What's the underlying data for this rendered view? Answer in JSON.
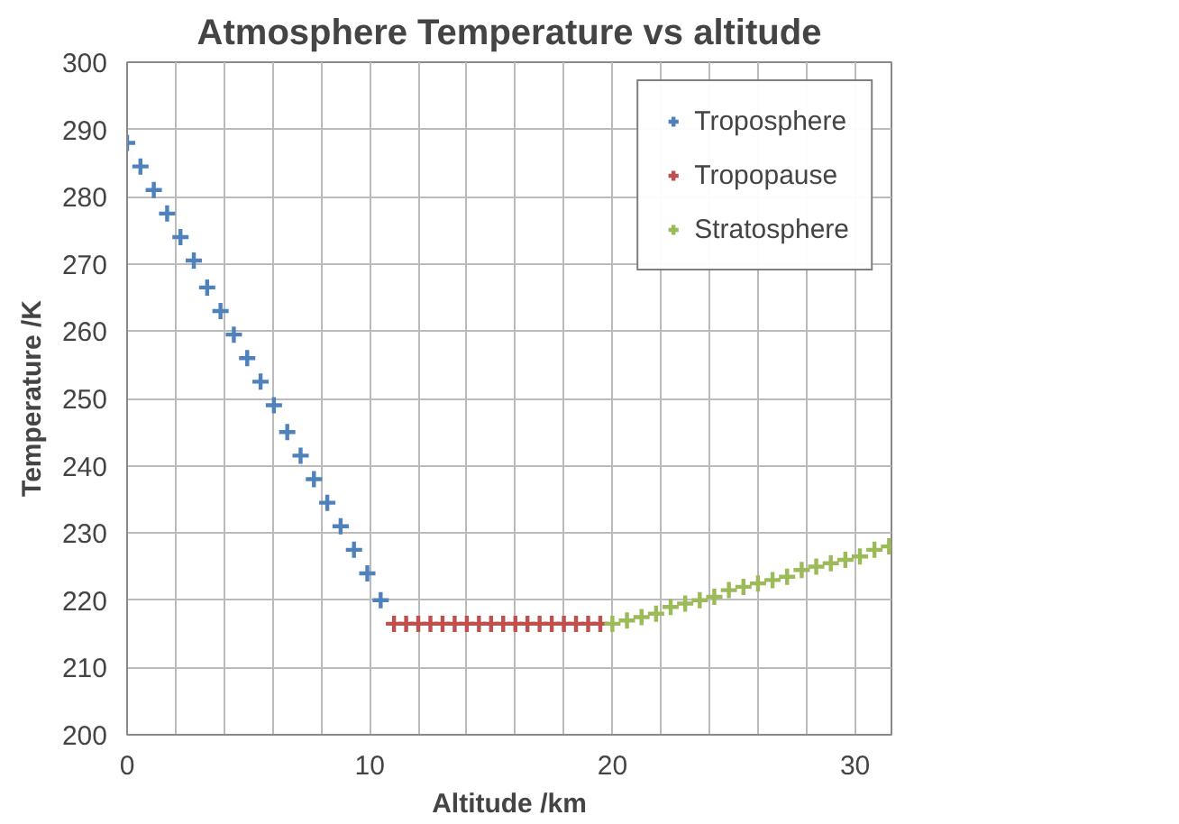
{
  "chart_data": {
    "type": "scatter",
    "title": "Atmosphere Temperature vs altitude",
    "xlabel": "Altitude /km",
    "ylabel": "Temperature /K",
    "xlim": [
      0,
      31.5
    ],
    "ylim": [
      200,
      300
    ],
    "xticks": [
      0,
      {
        "value": 2,
        "label": null
      },
      {
        "value": 4,
        "label": null
      },
      {
        "value": 6,
        "label": null
      },
      {
        "value": 8,
        "label": null
      },
      10,
      {
        "value": 12,
        "label": null
      },
      {
        "value": 14,
        "label": null
      },
      {
        "value": 16,
        "label": null
      },
      {
        "value": 18,
        "label": null
      },
      20,
      {
        "value": 22,
        "label": null
      },
      {
        "value": 24,
        "label": null
      },
      {
        "value": 26,
        "label": null
      },
      {
        "value": 28,
        "label": null
      },
      30
    ],
    "yticks": [
      200,
      210,
      220,
      230,
      240,
      250,
      260,
      270,
      280,
      290,
      300
    ],
    "grid": true,
    "legend": "top right",
    "marker": "cross",
    "series": [
      {
        "name": "Troposphere",
        "color": "#4f81bd",
        "x": [
          0,
          0.55,
          1.1,
          1.65,
          2.2,
          2.75,
          3.3,
          3.85,
          4.4,
          4.95,
          5.5,
          6.05,
          6.6,
          7.15,
          7.7,
          8.25,
          8.8,
          9.35,
          9.9,
          10.45
        ],
        "values": [
          288,
          284.5,
          281,
          277.5,
          274,
          270.5,
          266.5,
          263,
          259.5,
          256,
          252.5,
          249,
          245,
          241.5,
          238,
          234.5,
          231,
          227.5,
          224,
          220
        ]
      },
      {
        "name": "Tropopause",
        "color": "#c0504d",
        "x": [
          11,
          11.5,
          12,
          12.5,
          13,
          13.5,
          14,
          14.5,
          15,
          15.5,
          16,
          16.5,
          17,
          17.5,
          18,
          18.5,
          19,
          19.5
        ],
        "values": [
          216.5,
          216.5,
          216.5,
          216.5,
          216.5,
          216.5,
          216.5,
          216.5,
          216.5,
          216.5,
          216.5,
          216.5,
          216.5,
          216.5,
          216.5,
          216.5,
          216.5,
          216.5
        ]
      },
      {
        "name": "Stratosphere",
        "color": "#9bbb59",
        "x": [
          20,
          20.6,
          21.2,
          21.8,
          22.4,
          23,
          23.6,
          24.2,
          24.8,
          25.4,
          26,
          26.6,
          27.2,
          27.8,
          28.4,
          29,
          29.6,
          30.2,
          30.8,
          31.4
        ],
        "values": [
          216.5,
          217,
          217.5,
          218,
          219,
          219.5,
          220,
          220.5,
          221.5,
          222,
          222.5,
          223,
          223.5,
          224.5,
          225,
          225.5,
          226,
          226.5,
          227.5,
          228
        ]
      }
    ]
  }
}
